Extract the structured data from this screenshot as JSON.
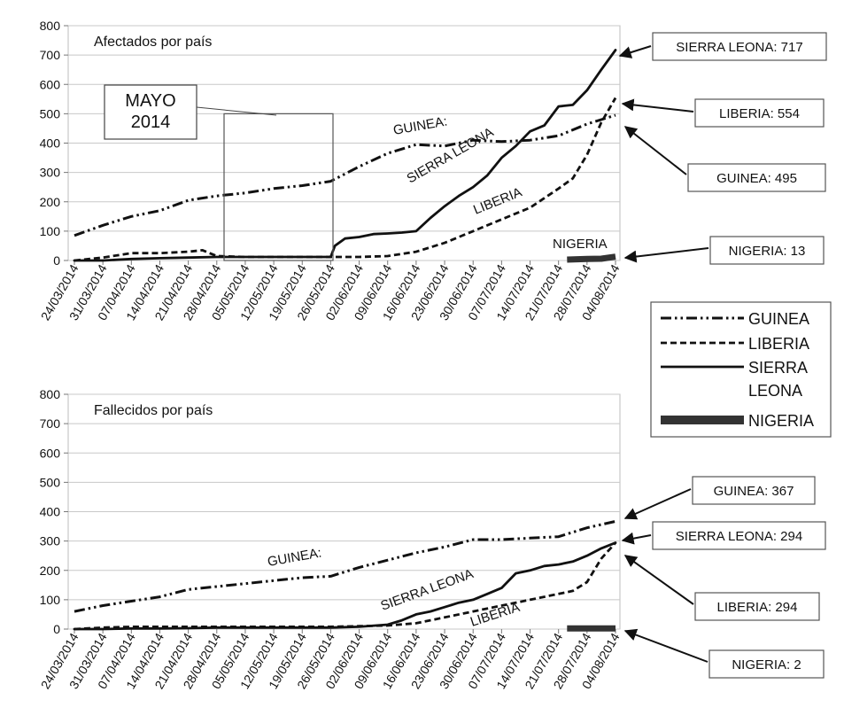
{
  "chart_data": [
    {
      "type": "line",
      "title": "Afectados por país",
      "x_categories": [
        "24/03/2014",
        "31/03/2014",
        "07/04/2014",
        "14/04/2014",
        "21/04/2014",
        "28/04/2014",
        "05/05/2014",
        "12/05/2014",
        "19/05/2014",
        "26/05/2014",
        "02/06/2014",
        "09/06/2014",
        "16/06/2014",
        "23/06/2014",
        "30/06/2014",
        "07/07/2014",
        "14/07/2014",
        "21/07/2014",
        "28/07/2014",
        "04/08/2014"
      ],
      "ylim": [
        0,
        800
      ],
      "yticks": [
        0,
        100,
        200,
        300,
        400,
        500,
        600,
        700,
        800
      ],
      "grid": true,
      "series": [
        {
          "name": "GUINEA",
          "style": "dash-dot-dot",
          "points": [
            [
              0,
              85
            ],
            [
              1,
              120
            ],
            [
              2,
              150
            ],
            [
              3,
              170
            ],
            [
              4,
              205
            ],
            [
              5,
              220
            ],
            [
              6,
              230
            ],
            [
              7,
              245
            ],
            [
              8,
              255
            ],
            [
              9,
              270
            ],
            [
              10,
              320
            ],
            [
              11,
              365
            ],
            [
              12,
              395
            ],
            [
              13,
              390
            ],
            [
              14,
              410
            ],
            [
              15,
              405
            ],
            [
              16,
              410
            ],
            [
              17,
              425
            ],
            [
              18,
              465
            ],
            [
              19,
              495
            ]
          ]
        },
        {
          "name": "LIBERIA",
          "style": "dashed",
          "points": [
            [
              0,
              0
            ],
            [
              1,
              10
            ],
            [
              2,
              25
            ],
            [
              3,
              25
            ],
            [
              4,
              30
            ],
            [
              4.5,
              35
            ],
            [
              5,
              15
            ],
            [
              6,
              12
            ],
            [
              7,
              12
            ],
            [
              8,
              12
            ],
            [
              9,
              12
            ],
            [
              10,
              12
            ],
            [
              11,
              15
            ],
            [
              12,
              30
            ],
            [
              13,
              60
            ],
            [
              14,
              100
            ],
            [
              15,
              140
            ],
            [
              16,
              180
            ],
            [
              17,
              245
            ],
            [
              17.5,
              280
            ],
            [
              18,
              360
            ],
            [
              18.5,
              470
            ],
            [
              19,
              554
            ]
          ]
        },
        {
          "name": "SIERRA LEONA",
          "style": "solid",
          "points": [
            [
              0,
              0
            ],
            [
              1,
              0
            ],
            [
              2,
              5
            ],
            [
              3,
              8
            ],
            [
              4,
              10
            ],
            [
              5,
              12
            ],
            [
              6,
              12
            ],
            [
              7,
              12
            ],
            [
              8,
              12
            ],
            [
              9,
              12
            ],
            [
              9.15,
              50
            ],
            [
              9.5,
              75
            ],
            [
              10,
              80
            ],
            [
              10.5,
              90
            ],
            [
              11,
              92
            ],
            [
              11.5,
              95
            ],
            [
              12,
              100
            ],
            [
              12.5,
              145
            ],
            [
              13,
              185
            ],
            [
              13.5,
              220
            ],
            [
              14,
              250
            ],
            [
              14.5,
              290
            ],
            [
              15,
              350
            ],
            [
              15.5,
              390
            ],
            [
              16,
              440
            ],
            [
              16.5,
              460
            ],
            [
              17,
              525
            ],
            [
              17.5,
              530
            ],
            [
              18,
              580
            ],
            [
              18.5,
              650
            ],
            [
              19,
              717
            ]
          ]
        },
        {
          "name": "NIGERIA",
          "style": "thick",
          "points": [
            [
              17.3,
              3
            ],
            [
              18,
              5
            ],
            [
              18.5,
              6
            ],
            [
              19,
              13
            ]
          ]
        }
      ],
      "annotations": [
        {
          "text": "MAYO\n2014"
        },
        {
          "text": "GUINEA:"
        },
        {
          "text": "SIERRA LEONA"
        },
        {
          "text": "LIBERIA"
        },
        {
          "text": "NIGERIA"
        }
      ],
      "callouts": [
        {
          "text": "SIERRA LEONA: 717"
        },
        {
          "text": "LIBERIA: 554"
        },
        {
          "text": "GUINEA: 495"
        },
        {
          "text": "NIGERIA: 13"
        }
      ]
    },
    {
      "type": "line",
      "title": "Fallecidos por país",
      "x_categories": [
        "24/03/2014",
        "31/03/2014",
        "07/04/2014",
        "14/04/2014",
        "21/04/2014",
        "28/04/2014",
        "05/05/2014",
        "12/05/2014",
        "19/05/2014",
        "26/05/2014",
        "02/06/2014",
        "09/06/2014",
        "16/06/2014",
        "23/06/2014",
        "30/06/2014",
        "07/07/2014",
        "14/07/2014",
        "21/07/2014",
        "28/07/2014",
        "04/08/2014"
      ],
      "ylim": [
        0,
        800
      ],
      "yticks": [
        0,
        100,
        200,
        300,
        400,
        500,
        600,
        700,
        800
      ],
      "grid": true,
      "series": [
        {
          "name": "GUINEA",
          "style": "dash-dot-dot",
          "points": [
            [
              0,
              60
            ],
            [
              1,
              80
            ],
            [
              2,
              95
            ],
            [
              3,
              110
            ],
            [
              4,
              135
            ],
            [
              5,
              145
            ],
            [
              6,
              155
            ],
            [
              7,
              165
            ],
            [
              8,
              175
            ],
            [
              9,
              180
            ],
            [
              10,
              210
            ],
            [
              11,
              235
            ],
            [
              12,
              260
            ],
            [
              13,
              280
            ],
            [
              14,
              305
            ],
            [
              15,
              305
            ],
            [
              16,
              310
            ],
            [
              17,
              315
            ],
            [
              18,
              345
            ],
            [
              19,
              367
            ]
          ]
        },
        {
          "name": "LIBERIA",
          "style": "dashed",
          "points": [
            [
              0,
              0
            ],
            [
              1,
              5
            ],
            [
              2,
              8
            ],
            [
              3,
              8
            ],
            [
              4,
              8
            ],
            [
              5,
              8
            ],
            [
              6,
              8
            ],
            [
              7,
              8
            ],
            [
              8,
              8
            ],
            [
              9,
              8
            ],
            [
              10,
              10
            ],
            [
              11,
              12
            ],
            [
              12,
              20
            ],
            [
              13,
              40
            ],
            [
              14,
              60
            ],
            [
              15,
              80
            ],
            [
              16,
              100
            ],
            [
              17,
              120
            ],
            [
              17.5,
              130
            ],
            [
              18,
              160
            ],
            [
              18.5,
              240
            ],
            [
              19,
              294
            ]
          ]
        },
        {
          "name": "SIERRA LEONA",
          "style": "solid",
          "points": [
            [
              0,
              0
            ],
            [
              1,
              0
            ],
            [
              2,
              2
            ],
            [
              3,
              2
            ],
            [
              4,
              3
            ],
            [
              5,
              5
            ],
            [
              6,
              5
            ],
            [
              7,
              5
            ],
            [
              8,
              5
            ],
            [
              9,
              5
            ],
            [
              10,
              8
            ],
            [
              11,
              15
            ],
            [
              11.5,
              30
            ],
            [
              12,
              50
            ],
            [
              12.5,
              60
            ],
            [
              13,
              75
            ],
            [
              13.5,
              90
            ],
            [
              14,
              100
            ],
            [
              14.5,
              120
            ],
            [
              15,
              140
            ],
            [
              15.5,
              190
            ],
            [
              16,
              200
            ],
            [
              16.5,
              215
            ],
            [
              17,
              220
            ],
            [
              17.5,
              230
            ],
            [
              18,
              250
            ],
            [
              18.5,
              275
            ],
            [
              19,
              294
            ]
          ]
        },
        {
          "name": "NIGERIA",
          "style": "thick",
          "points": [
            [
              17.3,
              2
            ],
            [
              19,
              2
            ]
          ]
        }
      ],
      "annotations": [
        {
          "text": "GUINEA:"
        },
        {
          "text": "SIERRA LEONA"
        },
        {
          "text": "LIBERIA"
        }
      ],
      "callouts": [
        {
          "text": "GUINEA: 367"
        },
        {
          "text": "SIERRA LEONA: 294"
        },
        {
          "text": "LIBERIA: 294"
        },
        {
          "text": "NIGERIA: 2"
        }
      ]
    }
  ],
  "legend": [
    {
      "name": "GUINEA",
      "style": "dash-dot-dot"
    },
    {
      "name": "LIBERIA",
      "style": "dashed"
    },
    {
      "name": "SIERRA\nLEONA",
      "style": "solid"
    },
    {
      "name": "NIGERIA",
      "style": "thick"
    }
  ]
}
